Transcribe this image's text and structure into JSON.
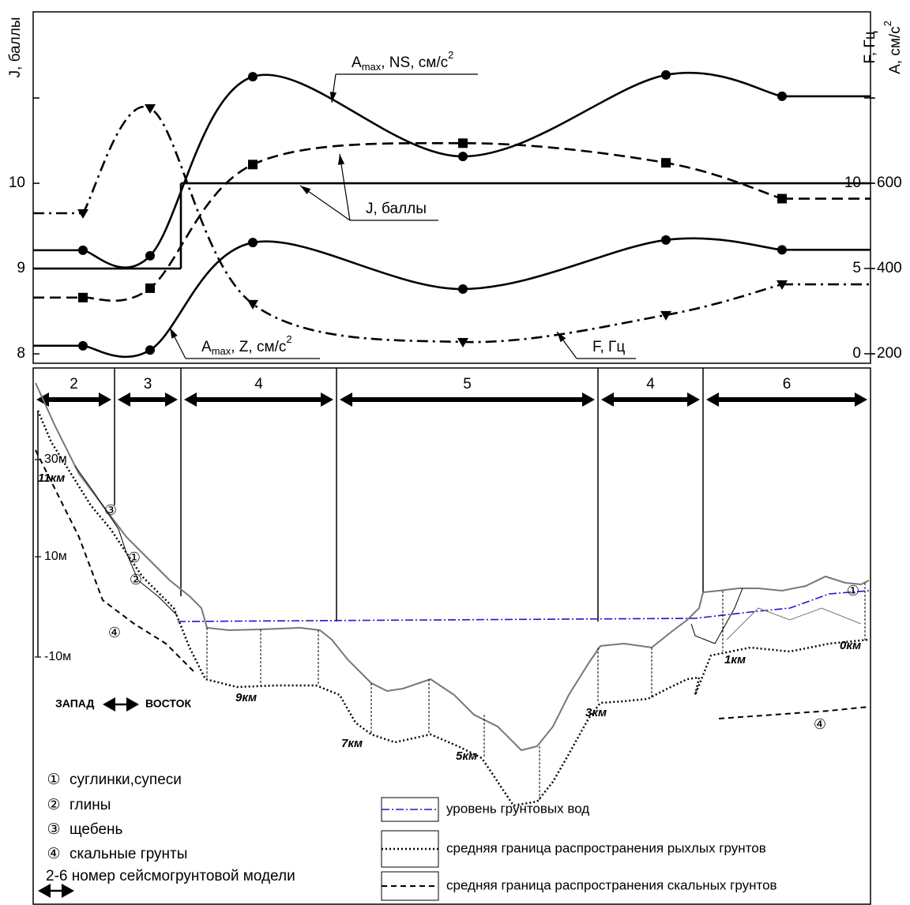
{
  "chart_data": {
    "type": "line",
    "categories": [
      "2",
      "3",
      "4",
      "5",
      "4",
      "6"
    ],
    "ylabel": "J, баллы",
    "y2label": "F, Гц",
    "y3label": {
      "text": "A, см/с",
      "sup": "2"
    },
    "ylim": [
      7.89,
      12.01
    ],
    "yticks": [
      8,
      9,
      10,
      {
        "value": 11,
        "label": null
      }
    ],
    "y2lim": [
      -0.56,
      20.05
    ],
    "y2ticks": [
      0,
      5,
      10,
      {
        "value": 15,
        "label": null
      }
    ],
    "y3lim": [
      178,
      1002
    ],
    "y3ticks": [
      200,
      400,
      600,
      {
        "value": 800,
        "label": null
      }
    ],
    "series": [
      {
        "style": "step",
        "color": "#000000",
        "values": [
          9,
          9,
          10,
          10,
          10,
          10
        ]
      },
      {
        "style": "dash",
        "marker": "square",
        "color": "#000000",
        "values": [
          8.66,
          8.77,
          10.22,
          10.47,
          10.24,
          9.82
        ]
      },
      {
        "style": "solid",
        "marker": "circle",
        "axis": "y3",
        "color": "#000000",
        "values": [
          443,
          430,
          850,
          663,
          854,
          804
        ]
      },
      {
        "style": "solid",
        "marker": "circle",
        "axis": "y3",
        "color": "#000000",
        "values": [
          219,
          209,
          461,
          352,
          467,
          444
        ]
      },
      {
        "style": "dashdot",
        "marker": "triangle",
        "axis": "y2",
        "color": "#000000",
        "values": [
          8.24,
          14.4,
          2.92,
          0.69,
          2.27,
          4.07
        ]
      }
    ],
    "annotations": [
      {
        "base": "A",
        "sub": "max",
        "text": ", NS, см/с",
        "sup": "2"
      },
      {
        "text": "J, баллы"
      },
      {
        "base": "A",
        "sub": "max",
        "text": ", Z, см/с",
        "sup": "2"
      },
      {
        "text": "F, Гц"
      }
    ]
  },
  "profile": {
    "scale_labels": [
      "30м",
      "10м",
      "-10м"
    ],
    "km_labels": [
      "11км",
      "9км",
      "7км",
      "5км",
      "3км",
      "1км",
      "0км"
    ],
    "soil_markers": [
      "③",
      "①",
      "②",
      "④",
      "④",
      "①"
    ],
    "direction": {
      "west": "ЗАПАД",
      "east": "ВОСТОК"
    },
    "legend": {
      "soils": [
        {
          "symbol": "①",
          "text": "суглинки,супеси"
        },
        {
          "symbol": "②",
          "text": "глины"
        },
        {
          "symbol": "③",
          "text": "щебень"
        },
        {
          "symbol": "④",
          "text": "скальные грунты"
        }
      ],
      "model": "2-6 номер сейсмогрунтовой модели",
      "lines": [
        "уровень грунтовых вод",
        "средняя граница распространения рыхлых грунтов",
        "средняя граница распространения скальных грунтов"
      ]
    }
  }
}
